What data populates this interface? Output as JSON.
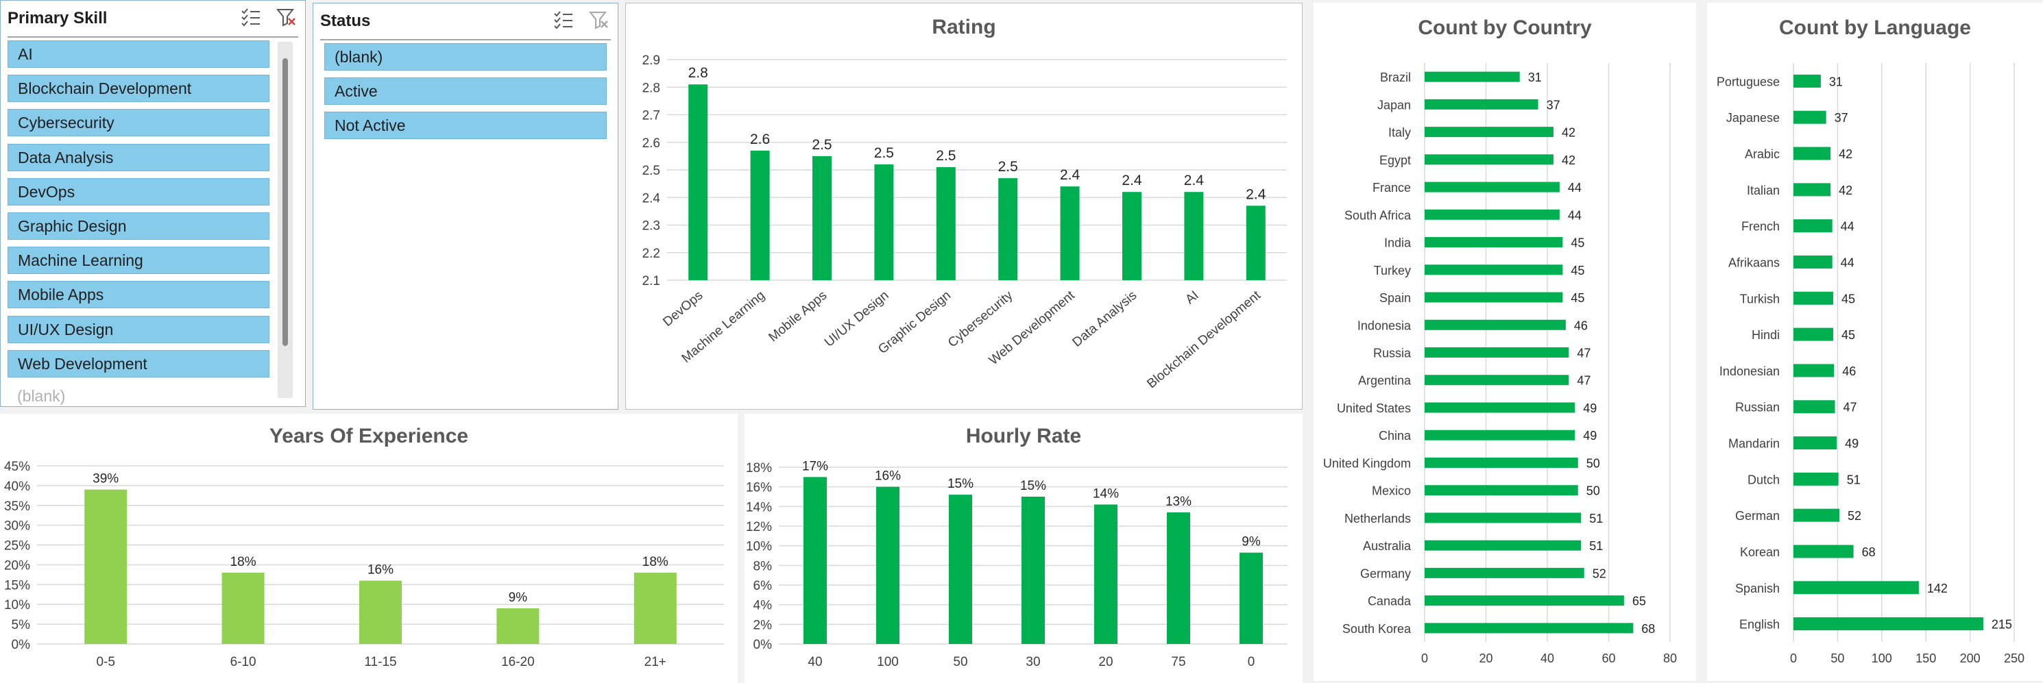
{
  "slicer_primary_skill": {
    "title": "Primary Skill",
    "multiselect_icon": "multi-select-icon",
    "clear_icon": "clear-filter-icon",
    "items": [
      "AI",
      "Blockchain Development",
      "Cybersecurity",
      "Data Analysis",
      "DevOps",
      "Graphic Design",
      "Machine Learning",
      "Mobile Apps",
      "UI/UX Design",
      "Web Development"
    ],
    "partial_item": "(blank)"
  },
  "slicer_status": {
    "title": "Status",
    "multiselect_icon": "multi-select-icon",
    "clear_icon": "clear-filter-icon",
    "items": [
      "(blank)",
      "Active",
      "Not Active"
    ]
  },
  "colors": {
    "dark_green": "#00b050",
    "light_green": "#92d050",
    "slicer_item": "#86cbea"
  },
  "chart_data": [
    {
      "id": "rating",
      "type": "bar",
      "title": "Rating",
      "categories": [
        "DevOps",
        "Machine Learning",
        "Mobile Apps",
        "UI/UX Design",
        "Graphic Design",
        "Cybersecurity",
        "Web Development",
        "Data Analysis",
        "AI",
        "Blockchain Development"
      ],
      "values": [
        2.81,
        2.57,
        2.55,
        2.52,
        2.51,
        2.47,
        2.44,
        2.42,
        2.42,
        2.37
      ],
      "labels": [
        "2.8",
        "2.6",
        "2.5",
        "2.5",
        "2.5",
        "2.5",
        "2.4",
        "2.4",
        "2.4",
        "2.4"
      ],
      "ylim": [
        2.1,
        2.9
      ],
      "yticks": [
        "2.1",
        "2.2",
        "2.3",
        "2.4",
        "2.5",
        "2.6",
        "2.7",
        "2.8",
        "2.9"
      ],
      "grid": true,
      "legend": "none"
    },
    {
      "id": "years",
      "type": "bar",
      "title": "Years Of Experience",
      "categories": [
        "0-5",
        "6-10",
        "11-15",
        "16-20",
        "21+"
      ],
      "values": [
        39,
        18,
        16,
        9,
        18
      ],
      "labels": [
        "39%",
        "18%",
        "16%",
        "9%",
        "18%"
      ],
      "ylim": [
        0,
        45
      ],
      "yticks": [
        "0%",
        "5%",
        "10%",
        "15%",
        "20%",
        "25%",
        "30%",
        "35%",
        "40%",
        "45%"
      ],
      "grid": true,
      "legend": "none"
    },
    {
      "id": "hourly",
      "type": "bar",
      "title": "Hourly Rate",
      "categories": [
        "40",
        "100",
        "50",
        "30",
        "20",
        "75",
        "0"
      ],
      "values": [
        17,
        16,
        15.2,
        15,
        14.2,
        13.4,
        9.3
      ],
      "labels": [
        "17%",
        "16%",
        "15%",
        "15%",
        "14%",
        "13%",
        "9%"
      ],
      "ylim": [
        0,
        18
      ],
      "yticks": [
        "0%",
        "2%",
        "4%",
        "6%",
        "8%",
        "10%",
        "12%",
        "14%",
        "16%",
        "18%"
      ],
      "grid": true,
      "legend": "none"
    },
    {
      "id": "country",
      "type": "bar",
      "orientation": "horizontal",
      "title": "Count by Country",
      "categories": [
        "Brazil",
        "Japan",
        "Italy",
        "Egypt",
        "France",
        "South Africa",
        "India",
        "Turkey",
        "Spain",
        "Indonesia",
        "Russia",
        "Argentina",
        "United States",
        "China",
        "United Kingdom",
        "Mexico",
        "Netherlands",
        "Australia",
        "Germany",
        "Canada",
        "South Korea"
      ],
      "values": [
        31,
        37,
        42,
        42,
        44,
        44,
        45,
        45,
        45,
        46,
        47,
        47,
        49,
        49,
        50,
        50,
        51,
        51,
        52,
        65,
        68
      ],
      "labels": [
        "31",
        "37",
        "42",
        "42",
        "44",
        "44",
        "45",
        "45",
        "45",
        "46",
        "47",
        "47",
        "49",
        "49",
        "50",
        "50",
        "51",
        "51",
        "52",
        "65",
        "68"
      ],
      "xlim": [
        0,
        80
      ],
      "xticks": [
        "0",
        "20",
        "40",
        "60",
        "80"
      ],
      "grid": true,
      "legend": "none"
    },
    {
      "id": "language",
      "type": "bar",
      "orientation": "horizontal",
      "title": "Count by Language",
      "categories": [
        "Portuguese",
        "Japanese",
        "Arabic",
        "Italian",
        "French",
        "Afrikaans",
        "Turkish",
        "Hindi",
        "Indonesian",
        "Russian",
        "Mandarin",
        "Dutch",
        "German",
        "Korean",
        "Spanish",
        "English"
      ],
      "values": [
        31,
        37,
        42,
        42,
        44,
        44,
        45,
        45,
        46,
        47,
        49,
        51,
        52,
        68,
        142,
        215
      ],
      "labels": [
        "31",
        "37",
        "42",
        "42",
        "44",
        "44",
        "45",
        "45",
        "46",
        "47",
        "49",
        "51",
        "52",
        "68",
        "142",
        "215"
      ],
      "xlim": [
        0,
        250
      ],
      "xticks": [
        "0",
        "50",
        "100",
        "150",
        "200",
        "250"
      ],
      "grid": true,
      "legend": "none"
    }
  ]
}
